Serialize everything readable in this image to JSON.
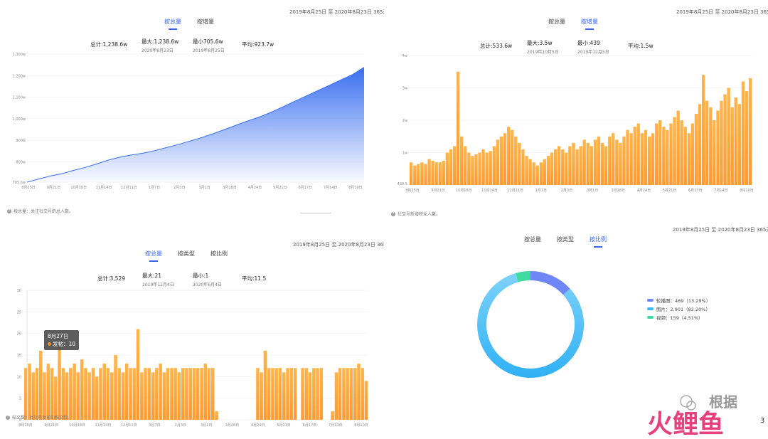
{
  "colors": {
    "accent": "#3a64f0",
    "blue_area": "#3a6ff0",
    "orange_bar": "#f8a035",
    "orange_bar_bottom": "#ff9a30",
    "donut_purple": "#6f86f7",
    "donut_blue": "#3db8f5",
    "donut_green": "#40d9a0"
  },
  "panels": [
    {
      "date_range": "2019年8月25日 至 2020年8月23日 365天",
      "tabs": [
        {
          "label": "按总量",
          "active": true
        },
        {
          "label": "按增量",
          "active": false
        }
      ],
      "stats": [
        {
          "label": "总计:1,238.6w",
          "sub": ""
        },
        {
          "label": "最大:1,238.6w",
          "sub": "2020年8月23日"
        },
        {
          "label": "最小705.6w",
          "sub": "2019年8月25日"
        },
        {
          "label": "平均:923.7w",
          "sub": ""
        }
      ],
      "note": "按总量：关注社交号的总人数。"
    },
    {
      "date_range": "2019年8月25日 至 2020年8月23日 365天",
      "tabs": [
        {
          "label": "按总量",
          "active": false
        },
        {
          "label": "按增量",
          "active": true
        }
      ],
      "stats": [
        {
          "label": "总计:533.6w",
          "sub": ""
        },
        {
          "label": "最大:3.5w",
          "sub": "2019年10月5日"
        },
        {
          "label": "最小:439",
          "sub": "2019年12月5日"
        },
        {
          "label": "平均:1.5w",
          "sub": ""
        }
      ],
      "note": "社交号新增粉丝人数。"
    },
    {
      "date_range": "2019年8月25日 至 2020年8月23日 365天",
      "tabs": [
        {
          "label": "按总量",
          "active": true
        },
        {
          "label": "按类型",
          "active": false
        },
        {
          "label": "按比例",
          "active": false
        }
      ],
      "stats": [
        {
          "label": "总计:3,529",
          "sub": ""
        },
        {
          "label": "最大:21",
          "sub": "2019年12月4日"
        },
        {
          "label": "最小:1",
          "sub": "2020年6月4日"
        },
        {
          "label": "平均:11.5",
          "sub": ""
        }
      ],
      "note": "帖文数：社交号发布的帖文数。",
      "tooltip": {
        "date": "8月27日",
        "series": "发帖",
        "value": "10"
      }
    },
    {
      "date_range": "2019年8月25日 至 2020年8月23日 365天",
      "tabs": [
        {
          "label": "按总量",
          "active": false
        },
        {
          "label": "按类型",
          "active": false
        },
        {
          "label": "按比例",
          "active": true
        }
      ]
    }
  ],
  "watermark": {
    "top": "根据",
    "bottom": "火鲤鱼",
    "corner": "3"
  },
  "chart_data": [
    {
      "type": "area",
      "x_tick_labels": [
        "8月25日",
        "9月21日",
        "10月18日",
        "11月14日",
        "12月11日",
        "1月7日",
        "2月3日",
        "3月1日",
        "3月28日",
        "4月24日",
        "5月21日",
        "6月17日",
        "7月14日",
        "8月10日"
      ],
      "y_tick_labels": [
        "705.6w",
        "800w",
        "900w",
        "1,000w",
        "1,100w",
        "1,200w",
        "1,300w"
      ],
      "ylim": [
        705.6,
        1300
      ],
      "series": [
        {
          "values": [
            705.6,
            720,
            734,
            745,
            760,
            774,
            790,
            808,
            822,
            832,
            840,
            852,
            866,
            880,
            896,
            912,
            930,
            950,
            970,
            990,
            1008,
            1030,
            1055,
            1080,
            1105,
            1130,
            1155,
            1180,
            1205,
            1238.6
          ]
        }
      ]
    },
    {
      "type": "bar",
      "x_tick_labels": [
        "8月25日",
        "9月21日",
        "10月18日",
        "11月14日",
        "12月11日",
        "1月7日",
        "2月3日",
        "3月1日",
        "3月28日",
        "4月24日",
        "5月21日",
        "6月17日",
        "7月14日",
        "8月10日"
      ],
      "y_tick_labels": [
        "439.5",
        "1w",
        "2w",
        "3w",
        "4w"
      ],
      "ylim": [
        0,
        4
      ],
      "values": [
        0.7,
        0.6,
        0.65,
        0.7,
        0.65,
        0.8,
        0.75,
        0.7,
        0.7,
        0.75,
        1.0,
        1.1,
        1.2,
        3.5,
        1.5,
        1.2,
        1.0,
        0.9,
        0.95,
        1.0,
        1.1,
        1.0,
        1.05,
        1.2,
        1.4,
        1.5,
        1.6,
        1.8,
        1.7,
        1.5,
        1.3,
        1.1,
        0.9,
        0.8,
        0.7,
        0.6,
        0.7,
        0.8,
        0.9,
        1.0,
        1.1,
        1.2,
        1.1,
        1.0,
        1.2,
        1.3,
        1.1,
        1.2,
        1.4,
        1.3,
        1.2,
        1.4,
        1.5,
        1.3,
        1.2,
        1.5,
        1.6,
        1.4,
        1.3,
        1.5,
        1.7,
        1.6,
        1.8,
        1.9,
        1.6,
        1.7,
        1.5,
        1.6,
        1.9,
        2.0,
        1.8,
        1.7,
        1.9,
        2.1,
        2.3,
        2.0,
        1.8,
        1.6,
        1.9,
        2.2,
        2.5,
        3.4,
        2.6,
        2.4,
        2.0,
        2.3,
        2.6,
        2.8,
        3.0,
        2.4,
        2.7,
        2.5,
        3.2,
        2.9,
        3.3
      ]
    },
    {
      "type": "bar",
      "x_tick_labels": [
        "8月25日",
        "9月21日",
        "10月18日",
        "11月14日",
        "12月11日",
        "1月7日",
        "2月3日",
        "3月1日",
        "3月28日",
        "4月24日",
        "5月21日",
        "6月17日",
        "7月14日",
        "8月10日"
      ],
      "y_tick_labels": [
        "0",
        "5",
        "10",
        "15",
        "20",
        "25",
        "30"
      ],
      "ylim": [
        0,
        30
      ],
      "values": [
        12,
        13,
        11,
        12,
        16,
        11,
        13,
        12,
        10,
        17,
        12,
        11,
        12,
        13,
        11,
        14,
        12,
        11,
        12,
        10,
        12,
        13,
        12,
        11,
        15,
        12,
        11,
        13,
        12,
        12,
        21,
        11,
        12,
        12,
        11,
        12,
        13,
        11,
        12,
        12,
        12,
        11,
        12,
        12,
        12,
        12,
        12,
        12,
        13,
        12,
        12,
        2,
        0,
        0,
        0,
        0,
        0,
        0,
        0,
        0,
        0,
        0,
        12,
        11,
        16,
        12,
        12,
        12,
        12,
        11,
        12,
        12,
        12,
        0,
        12,
        12,
        11,
        12,
        12,
        12,
        0,
        0,
        2,
        11,
        12,
        12,
        12,
        12,
        12,
        13,
        12,
        9
      ]
    },
    {
      "type": "pie",
      "categories": [
        "轮播图",
        "图片",
        "视频"
      ],
      "values": [
        469,
        2901,
        159
      ],
      "legend": [
        "轮播图：469（13.29%）",
        "图片：2,901（82.20%）",
        "视频：159（4.51%）"
      ]
    }
  ]
}
